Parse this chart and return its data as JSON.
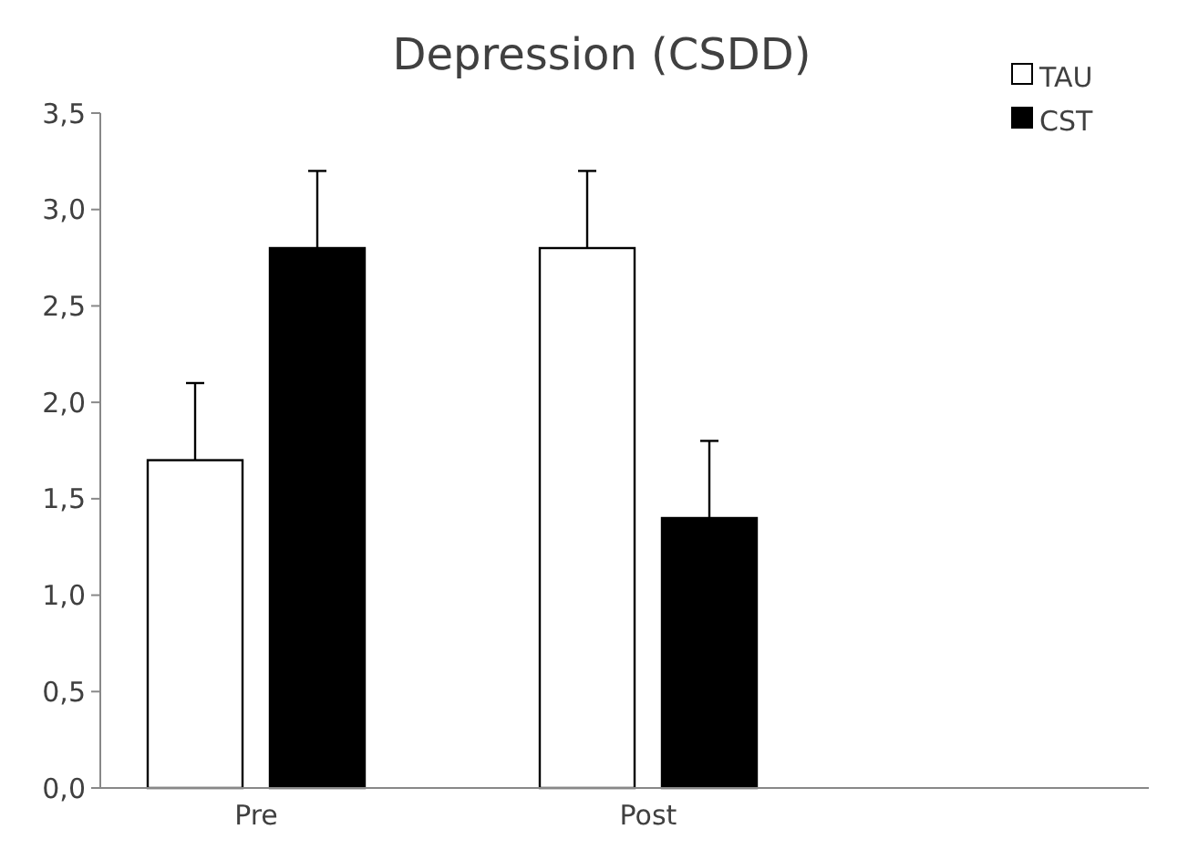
{
  "chart_data": {
    "type": "bar",
    "title": "Depression (CSDD)",
    "categories": [
      "Pre",
      "Post"
    ],
    "series": [
      {
        "name": "TAU",
        "color": "#ffffff",
        "values": [
          1.7,
          2.8
        ],
        "errors": [
          [
            1.7,
            2.1
          ],
          [
            2.8,
            3.2
          ]
        ]
      },
      {
        "name": "CST",
        "color": "#000000",
        "values": [
          2.8,
          1.4
        ],
        "errors": [
          [
            2.8,
            3.2
          ],
          [
            1.4,
            1.8
          ]
        ]
      }
    ],
    "ylim": [
      0,
      3.5
    ],
    "yticks": [
      {
        "value": 0,
        "label": "0,0"
      },
      {
        "value": 0.5,
        "label": "0,5"
      },
      {
        "value": 1,
        "label": "1,0"
      },
      {
        "value": 1.5,
        "label": "1,5"
      },
      {
        "value": 2,
        "label": "2,0"
      },
      {
        "value": 2.5,
        "label": "2,5"
      },
      {
        "value": 3,
        "label": "3,0"
      },
      {
        "value": 3.5,
        "label": "3,5"
      }
    ],
    "grid": false,
    "legend": "top right"
  }
}
